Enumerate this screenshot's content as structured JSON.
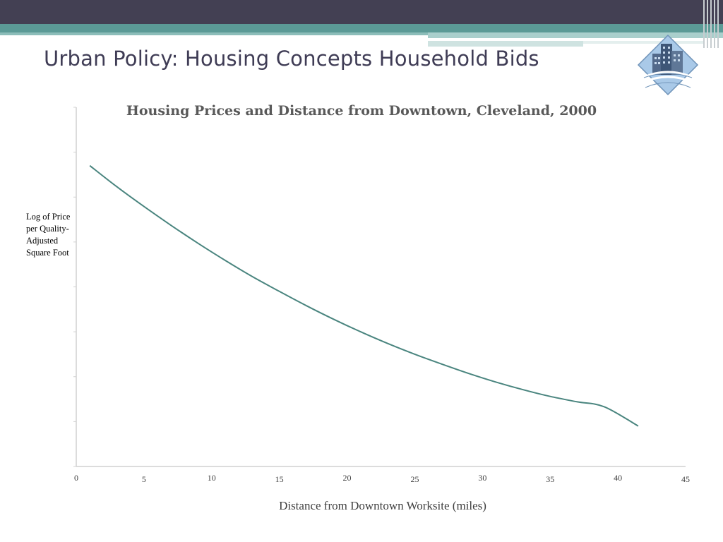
{
  "slide": {
    "title": "Urban Policy:  Housing Concepts Household Bids"
  },
  "logo": {
    "icon": "city-buildings-logo-icon"
  },
  "colors": {
    "header_dark": "#434053",
    "header_teal": "#5b9a96",
    "curve": "#4a857f",
    "axis": "#d0d0d0"
  },
  "chart_data": {
    "type": "line",
    "title": "Housing Prices and Distance from Downtown, Cleveland, 2000",
    "xlabel": "Distance from Downtown Worksite (miles)",
    "ylabel": "Log of Price per Quality-Adjusted Square Foot",
    "xlim": [
      0,
      45
    ],
    "ylim": [
      0,
      8
    ],
    "x_ticks": [
      0,
      5,
      10,
      15,
      20,
      25,
      30,
      35,
      40,
      45
    ],
    "y_tick_count": 9,
    "y_tick_labels_shown": false,
    "grid": false,
    "legend": "none",
    "series": [
      {
        "x": [
          1,
          3,
          5,
          7,
          9,
          11,
          13,
          15,
          17,
          19,
          21,
          23,
          25,
          27,
          29,
          31,
          33,
          35,
          37,
          39,
          41.5
        ],
        "y": [
          6.7,
          6.23,
          5.79,
          5.37,
          4.97,
          4.59,
          4.23,
          3.9,
          3.58,
          3.28,
          3.0,
          2.74,
          2.5,
          2.28,
          2.07,
          1.88,
          1.71,
          1.56,
          1.44,
          1.33,
          0.9
        ]
      }
    ]
  }
}
